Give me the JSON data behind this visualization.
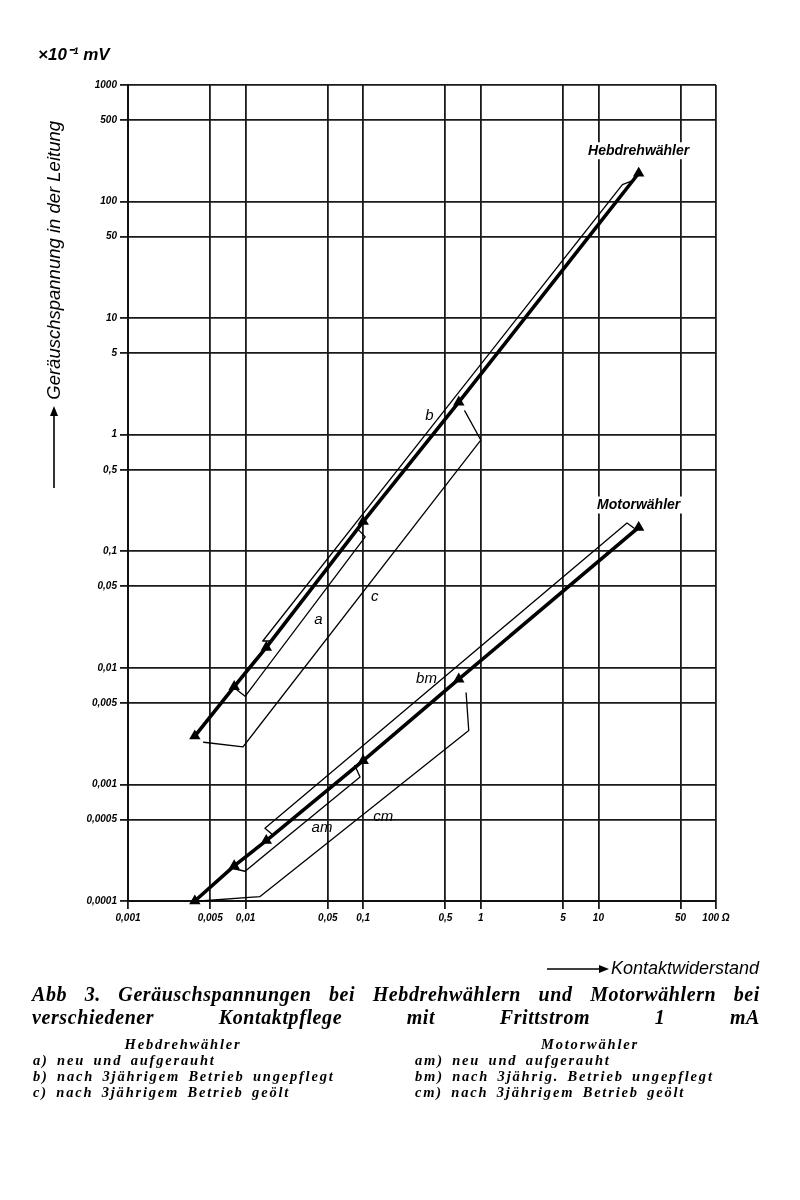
{
  "chart_data": {
    "type": "line",
    "title": "Abb 3. Geräuschspannungen bei Hebdrehwählern und Motorwählern bei verschiedener Kontaktpflege mit Frittstrom 1 mA",
    "xlabel": "Kontaktwiderstand",
    "ylabel": "Geräuschspannung in der Leitung",
    "annotations": [
      "×10⁻¹ mV",
      "Hebdrehwähler",
      "a) neu und aufgerauht",
      "b) nach 3jährigem Betrieb ungepflegt",
      "c) nach 3jährigem Betrieb geölt",
      "Motorwähler",
      "am) neu und aufgerauht",
      "bm) nach 3jährig. Betrieb ungepflegt",
      "cm) nach 3jährigem Betrieb geölt"
    ],
    "log": "xy",
    "grid": true,
    "xlim": [
      0.001,
      100
    ],
    "ylim": [
      0.0001,
      1000
    ],
    "xticks": [
      {
        "value": 0.001,
        "label": "0,001"
      },
      {
        "value": 0.005,
        "label": "0,005"
      },
      {
        "value": 0.01,
        "label": "0,01"
      },
      {
        "value": 0.05,
        "label": "0,05"
      },
      {
        "value": 0.1,
        "label": "0,1"
      },
      {
        "value": 0.5,
        "label": "0,5"
      },
      1,
      5,
      10,
      50,
      {
        "value": 100,
        "label": "100 Ω"
      }
    ],
    "yticks": [
      {
        "value": 0.0001,
        "label": "0,0001"
      },
      {
        "value": 0.0005,
        "label": "0,0005"
      },
      {
        "value": 0.001,
        "label": "0,001"
      },
      {
        "value": 0.005,
        "label": "0,005"
      },
      {
        "value": 0.01,
        "label": "0,01"
      },
      {
        "value": 0.05,
        "label": "0,05"
      },
      {
        "value": 0.1,
        "label": "0,1"
      },
      {
        "value": 0.5,
        "label": "0,5"
      },
      1,
      5,
      10,
      50,
      100,
      500,
      1000
    ],
    "series": [
      {
        "name": "Hebdrehwähler",
        "type": "line",
        "color": "#000000",
        "marker": "triangle",
        "x": [
          0.0037,
          0.008,
          0.015,
          0.1,
          0.65,
          22
        ],
        "values": [
          0.0026,
          0.0069,
          0.015,
          0.18,
          1.9,
          175
        ]
      },
      {
        "name": "Motorwähler",
        "type": "line",
        "color": "#000000",
        "marker": "triangle",
        "x": [
          0.0037,
          0.008,
          0.015,
          0.1,
          0.65,
          22
        ],
        "values": [
          0.0001,
          0.0002,
          0.00033,
          0.0016,
          0.008,
          0.16
        ]
      },
      {
        "name": "a",
        "type": "line",
        "color": "#000000",
        "x": [
          0.0078,
          0.0099,
          0.104,
          0.09
        ],
        "values": [
          0.0069,
          0.0057,
          0.133,
          0.155
        ]
      },
      {
        "name": "b",
        "type": "line",
        "color": "#000000",
        "x": [
          0.016,
          0.014,
          16,
          20
        ],
        "values": [
          0.017,
          0.017,
          140,
          153
        ]
      },
      {
        "name": "c",
        "type": "line",
        "color": "#000000",
        "x": [
          0.0044,
          0.0095,
          1.0,
          0.73
        ],
        "values": [
          0.0023,
          0.0021,
          0.9,
          1.6
        ]
      },
      {
        "name": "am",
        "type": "line",
        "color": "#000000",
        "x": [
          0.0078,
          0.0099,
          0.094,
          0.085
        ],
        "values": [
          0.00019,
          0.00018,
          0.00116,
          0.00145
        ]
      },
      {
        "name": "bm",
        "type": "line",
        "color": "#000000",
        "x": [
          0.017,
          0.0146,
          17.5,
          21
        ],
        "values": [
          0.00037,
          0.00042,
          0.175,
          0.153
        ]
      },
      {
        "name": "cm",
        "type": "line",
        "color": "#000000",
        "x": [
          0.0041,
          0.0132,
          0.79,
          0.75
        ],
        "values": [
          0.0001,
          0.000109,
          0.0029,
          0.0061
        ]
      }
    ]
  }
}
